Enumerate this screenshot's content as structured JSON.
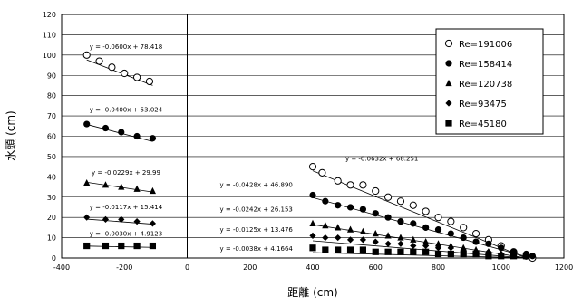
{
  "chart_data": {
    "type": "scatter",
    "xlabel": "距離 (cm)",
    "ylabel": "水頭 (cm)",
    "xlim": [
      -400,
      1200
    ],
    "ylim": [
      0,
      120
    ],
    "x_ticks": [
      -400,
      -200,
      0,
      200,
      400,
      600,
      800,
      1000,
      1200
    ],
    "y_ticks": [
      0,
      10,
      20,
      30,
      40,
      50,
      60,
      70,
      80,
      90,
      100,
      110,
      120
    ],
    "x_tick_labels": [
      "-400",
      "-200",
      "0",
      "200",
      "400",
      "600",
      "800",
      "1000",
      "1200"
    ],
    "y_tick_labels": [
      "0",
      "10",
      "20",
      "30",
      "40",
      "50",
      "60",
      "70",
      "80",
      "90",
      "100",
      "110",
      "120"
    ],
    "grid": "horizontal",
    "legend_position": "top-right",
    "series": [
      {
        "name": "Re=191006",
        "marker": "circle-open",
        "points": [
          [
            -320,
            100
          ],
          [
            -280,
            97
          ],
          [
            -240,
            94
          ],
          [
            -200,
            91
          ],
          [
            -160,
            89
          ],
          [
            -120,
            87
          ],
          [
            400,
            45
          ],
          [
            430,
            42
          ],
          [
            480,
            38
          ],
          [
            520,
            36
          ],
          [
            560,
            36
          ],
          [
            600,
            33
          ],
          [
            640,
            30
          ],
          [
            680,
            28
          ],
          [
            720,
            26
          ],
          [
            760,
            23
          ],
          [
            800,
            20
          ],
          [
            840,
            18
          ],
          [
            880,
            15
          ],
          [
            920,
            12
          ],
          [
            960,
            9
          ],
          [
            1000,
            6
          ],
          [
            1040,
            3
          ],
          [
            1080,
            1
          ],
          [
            1100,
            0
          ]
        ]
      },
      {
        "name": "Re=158414",
        "marker": "circle-filled",
        "points": [
          [
            -320,
            66
          ],
          [
            -260,
            64
          ],
          [
            -210,
            62
          ],
          [
            -160,
            60
          ],
          [
            -110,
            59
          ],
          [
            400,
            31
          ],
          [
            440,
            28
          ],
          [
            480,
            26
          ],
          [
            520,
            25
          ],
          [
            560,
            24
          ],
          [
            600,
            22
          ],
          [
            640,
            20
          ],
          [
            680,
            18
          ],
          [
            720,
            17
          ],
          [
            760,
            15
          ],
          [
            800,
            14
          ],
          [
            840,
            12
          ],
          [
            880,
            10
          ],
          [
            920,
            8
          ],
          [
            960,
            7
          ],
          [
            1000,
            5
          ],
          [
            1040,
            3
          ],
          [
            1080,
            2
          ],
          [
            1100,
            1
          ]
        ]
      },
      {
        "name": "Re=120738",
        "marker": "triangle-filled",
        "points": [
          [
            -320,
            37
          ],
          [
            -260,
            36
          ],
          [
            -210,
            35
          ],
          [
            -160,
            34
          ],
          [
            -110,
            33
          ],
          [
            400,
            17
          ],
          [
            440,
            16
          ],
          [
            480,
            15
          ],
          [
            520,
            14
          ],
          [
            560,
            13
          ],
          [
            600,
            12
          ],
          [
            640,
            11
          ],
          [
            680,
            10
          ],
          [
            720,
            9
          ],
          [
            760,
            8
          ],
          [
            800,
            7
          ],
          [
            840,
            6
          ],
          [
            880,
            5
          ],
          [
            920,
            4
          ],
          [
            960,
            3
          ],
          [
            1000,
            2
          ],
          [
            1040,
            2
          ],
          [
            1080,
            1
          ]
        ]
      },
      {
        "name": "Re=93475",
        "marker": "diamond-filled",
        "points": [
          [
            -320,
            20
          ],
          [
            -260,
            19
          ],
          [
            -210,
            19
          ],
          [
            -160,
            18
          ],
          [
            -110,
            17
          ],
          [
            400,
            11
          ],
          [
            440,
            10
          ],
          [
            480,
            10
          ],
          [
            520,
            9
          ],
          [
            560,
            9
          ],
          [
            600,
            8
          ],
          [
            640,
            7
          ],
          [
            680,
            7
          ],
          [
            720,
            6
          ],
          [
            760,
            6
          ],
          [
            800,
            5
          ],
          [
            840,
            5
          ],
          [
            880,
            4
          ],
          [
            920,
            3
          ],
          [
            960,
            3
          ],
          [
            1000,
            2
          ],
          [
            1040,
            2
          ],
          [
            1080,
            1
          ]
        ]
      },
      {
        "name": "Re=45180",
        "marker": "square-filled",
        "points": [
          [
            -320,
            6
          ],
          [
            -260,
            6
          ],
          [
            -210,
            6
          ],
          [
            -160,
            6
          ],
          [
            -110,
            6
          ],
          [
            400,
            5
          ],
          [
            440,
            4
          ],
          [
            480,
            4
          ],
          [
            520,
            4
          ],
          [
            560,
            4
          ],
          [
            600,
            3
          ],
          [
            640,
            3
          ],
          [
            680,
            3
          ],
          [
            720,
            3
          ],
          [
            760,
            3
          ],
          [
            800,
            2
          ],
          [
            840,
            2
          ],
          [
            880,
            2
          ],
          [
            920,
            2
          ],
          [
            960,
            1
          ],
          [
            1000,
            1
          ],
          [
            1040,
            1
          ],
          [
            1080,
            1
          ]
        ]
      }
    ],
    "trendlines": [
      {
        "series": "Re=191006",
        "x_range": [
          -320,
          -110
        ],
        "slope": -0.06,
        "intercept": 78.418
      },
      {
        "series": "Re=158414",
        "x_range": [
          -320,
          -110
        ],
        "slope": -0.04,
        "intercept": 53.024
      },
      {
        "series": "Re=120738",
        "x_range": [
          -320,
          -110
        ],
        "slope": -0.0229,
        "intercept": 29.99
      },
      {
        "series": "Re=93475",
        "x_range": [
          -320,
          -110
        ],
        "slope": -0.0117,
        "intercept": 15.414
      },
      {
        "series": "Re=45180",
        "x_range": [
          -320,
          -110
        ],
        "slope": -0.003,
        "intercept": 4.9123
      },
      {
        "series": "Re=191006",
        "x_range": [
          400,
          1100
        ],
        "slope": -0.0632,
        "intercept": 68.251
      },
      {
        "series": "Re=158414",
        "x_range": [
          400,
          1100
        ],
        "slope": -0.0428,
        "intercept": 46.89
      },
      {
        "series": "Re=120738",
        "x_range": [
          400,
          1100
        ],
        "slope": -0.0242,
        "intercept": 26.153
      },
      {
        "series": "Re=93475",
        "x_range": [
          400,
          1100
        ],
        "slope": -0.0125,
        "intercept": 13.476
      },
      {
        "series": "Re=45180",
        "x_range": [
          400,
          1100
        ],
        "slope": -0.0038,
        "intercept": 4.1664
      }
    ],
    "annotations": [
      {
        "text": "y = -0.0600x + 78.418",
        "x": -195,
        "y": 103
      },
      {
        "text": "y = -0.0400x + 53.024",
        "x": -195,
        "y": 72
      },
      {
        "text": "y = -0.0229x + 29.99",
        "x": -195,
        "y": 41
      },
      {
        "text": "y = -0.0117x + 15.414",
        "x": -195,
        "y": 24
      },
      {
        "text": "y = -0.0030x + 4.9123",
        "x": -195,
        "y": 11
      },
      {
        "text": "y = -0.0632x + 68.251",
        "x": 620,
        "y": 48
      },
      {
        "text": "y = -0.0428x + 46.890",
        "x": 220,
        "y": 35
      },
      {
        "text": "y = -0.0242x + 26.153",
        "x": 220,
        "y": 23
      },
      {
        "text": "y = -0.0125x + 13.476",
        "x": 220,
        "y": 13
      },
      {
        "text": "y = -0.0038x + 4.1664",
        "x": 220,
        "y": 3.5
      }
    ]
  }
}
